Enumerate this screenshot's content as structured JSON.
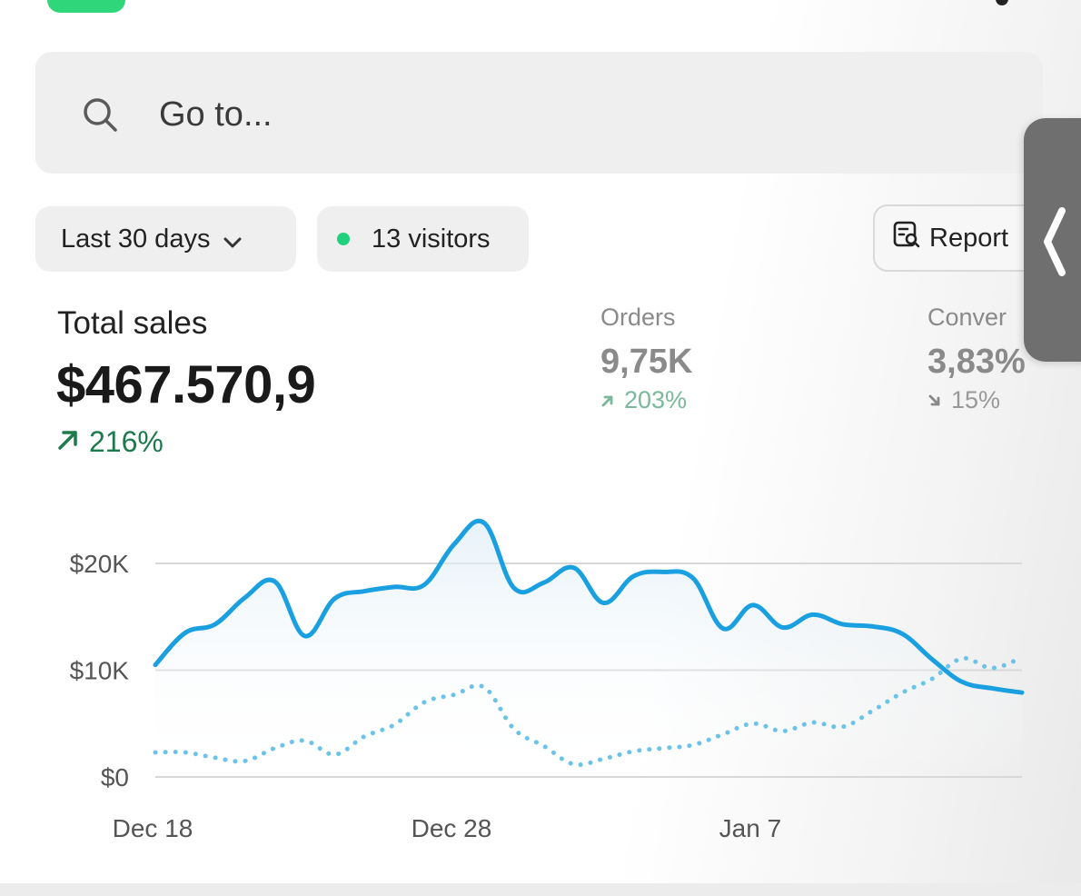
{
  "search": {
    "placeholder": "Go to..."
  },
  "filters": {
    "date_range": "Last 30 days",
    "visitors": "13 visitors"
  },
  "report_button": {
    "label": "Report"
  },
  "metrics": {
    "total_sales": {
      "label": "Total sales",
      "value": "$467.570,9",
      "change": "216%",
      "direction": "up"
    },
    "orders": {
      "label": "Orders",
      "value": "9,75K",
      "change": "203%",
      "direction": "up"
    },
    "conversion": {
      "label": "Conver",
      "value": "3,83%",
      "change": "15%",
      "direction": "down"
    }
  },
  "colors": {
    "accent": "#2fd67a",
    "status_dot": "#21d07a",
    "positive": "#1c7a4c",
    "primary_line": "#1aa0e0",
    "comparison_line": "#6cc3ea"
  },
  "chart_data": {
    "type": "line",
    "x_tick_labels": [
      "Dec 18",
      "Dec 28",
      "Jan 7"
    ],
    "y_tick_labels": [
      "$20K",
      "$10K",
      "$0"
    ],
    "ylim": [
      0,
      20000
    ],
    "grid": true,
    "x": [
      "Dec 18",
      "Dec 19",
      "Dec 20",
      "Dec 21",
      "Dec 22",
      "Dec 23",
      "Dec 24",
      "Dec 25",
      "Dec 26",
      "Dec 27",
      "Dec 28",
      "Dec 29",
      "Dec 30",
      "Dec 31",
      "Jan 1",
      "Jan 2",
      "Jan 3",
      "Jan 4",
      "Jan 5",
      "Jan 6",
      "Jan 7",
      "Jan 8",
      "Jan 9",
      "Jan 10",
      "Jan 11",
      "Jan 12",
      "Jan 13",
      "Jan 14",
      "Jan 15",
      "Jan 16"
    ],
    "series": [
      {
        "style": "solid",
        "values": [
          10500,
          13500,
          14300,
          16800,
          18300,
          13200,
          16700,
          17400,
          17800,
          18000,
          21800,
          23800,
          17700,
          18200,
          19600,
          16300,
          18800,
          19200,
          18600,
          13900,
          16100,
          14000,
          15200,
          14300,
          14100,
          13400,
          11000,
          8900,
          8300,
          7900
        ]
      },
      {
        "style": "dotted",
        "values": [
          2300,
          2300,
          1800,
          1500,
          2700,
          3400,
          2100,
          3800,
          4900,
          7000,
          7700,
          8400,
          4500,
          2900,
          1200,
          1700,
          2400,
          2700,
          3000,
          4000,
          5000,
          4300,
          5100,
          4700,
          6200,
          7900,
          9200,
          11100,
          10200,
          11200
        ]
      }
    ]
  }
}
